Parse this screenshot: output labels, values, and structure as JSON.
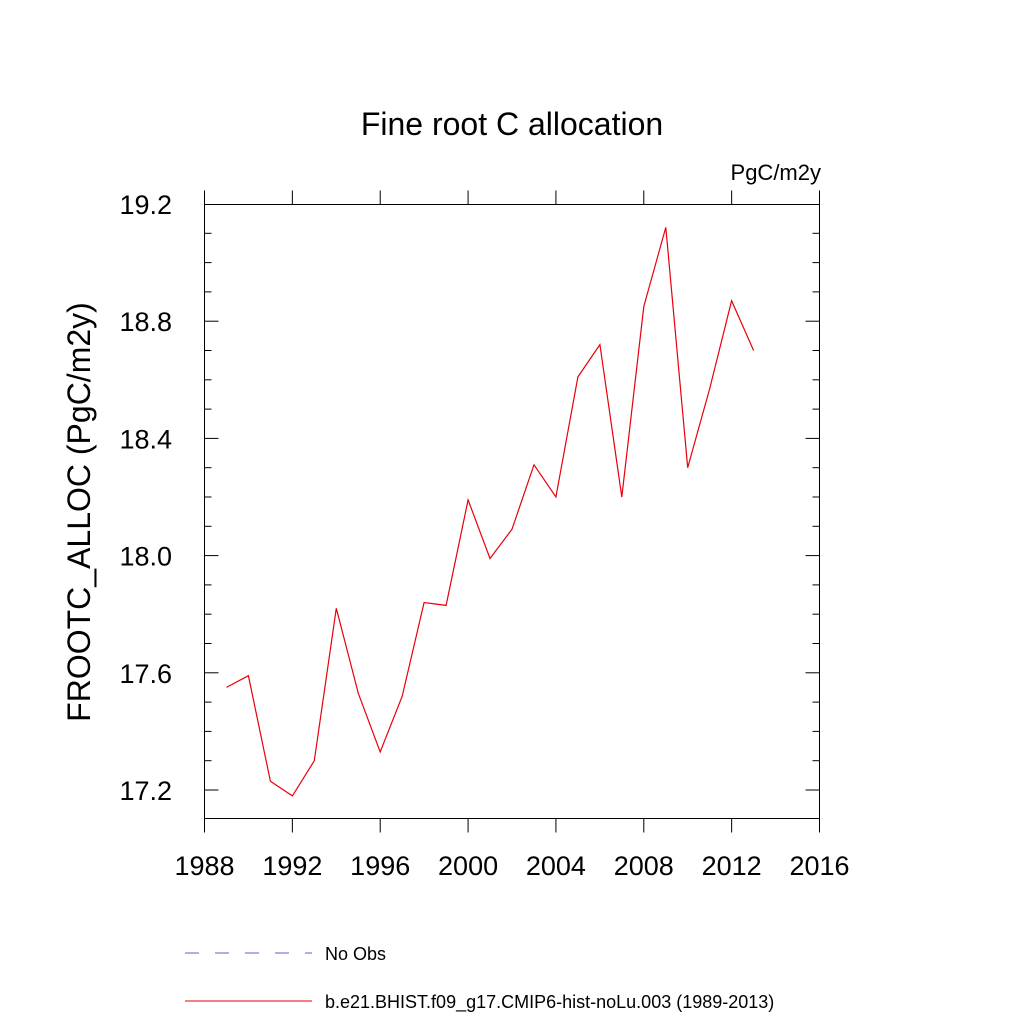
{
  "chart_data": {
    "type": "line",
    "title": "Fine root C allocation",
    "units_label": "PgC/m2y",
    "ylabel": "FROOTC_ALLOC  (PgC/m2y)",
    "xlabel": "",
    "xlim": [
      1988,
      2016
    ],
    "ylim": [
      17.1,
      19.25
    ],
    "x_ticks": [
      1988,
      1992,
      1996,
      2000,
      2004,
      2008,
      2012,
      2016
    ],
    "y_ticks": [
      17.2,
      17.6,
      18.0,
      18.4,
      18.8,
      19.2
    ],
    "x_tick_labels": [
      "1988",
      "1992",
      "1996",
      "2000",
      "2004",
      "2008",
      "2012",
      "2016"
    ],
    "y_tick_labels": [
      "17.2",
      "17.6",
      "18.0",
      "18.4",
      "18.8",
      "19.2"
    ],
    "grid": false,
    "legend_position": "bottom",
    "series": [
      {
        "name": "b.e21.BHIST.f09_g17.CMIP6-hist-noLu.003 (1989-2013)",
        "color": "#e8000b",
        "line_style": "solid",
        "x": [
          1989,
          1990,
          1991,
          1992,
          1993,
          1994,
          1995,
          1996,
          1997,
          1998,
          1999,
          2000,
          2001,
          2002,
          2003,
          2004,
          2005,
          2006,
          2007,
          2008,
          2009,
          2010,
          2011,
          2012,
          2013
        ],
        "values": [
          17.55,
          17.59,
          17.23,
          17.18,
          17.3,
          17.82,
          17.53,
          17.33,
          17.52,
          17.84,
          17.83,
          18.19,
          17.99,
          18.09,
          18.31,
          18.2,
          18.61,
          18.72,
          18.2,
          18.85,
          19.12,
          18.3,
          18.57,
          18.87,
          18.7
        ]
      }
    ],
    "legend": [
      {
        "label": "No Obs",
        "color": "#6a5acd",
        "line_style": "dashed"
      },
      {
        "label": "b.e21.BHIST.f09_g17.CMIP6-hist-noLu.003 (1989-2013)",
        "color": "#e8000b",
        "line_style": "solid"
      }
    ]
  }
}
